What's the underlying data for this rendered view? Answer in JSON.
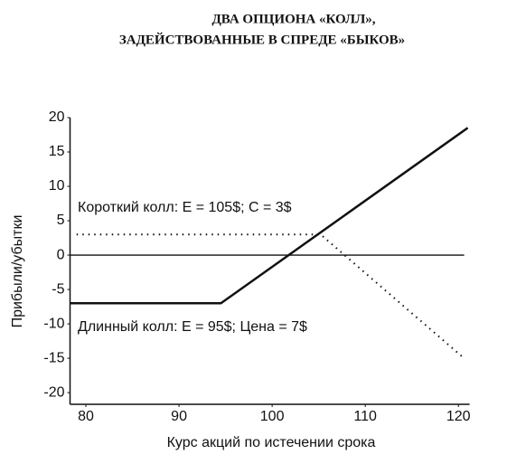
{
  "chart_data": {
    "type": "line",
    "title": [
      "ДВА ОПЦИОНА «КОЛЛ»,",
      "ЗАДЕЙСТВОВАННЫЕ В СПРЕДЕ «БЫКОВ»"
    ],
    "x_label": "Курс акций по истечении срока",
    "y_label": "Прибыли/убытки",
    "annotations": [
      "Короткий колл: E = 105$; C = 3$",
      "Длинный колл: E = 95$;   Цена = 7$"
    ],
    "series": [
      {
        "color": "#111111",
        "style": "solid",
        "x": [
          78.3,
          94.5,
          121
        ],
        "values": [
          -7,
          -7,
          18.5
        ]
      },
      {
        "color": "#111111",
        "style": "dotted",
        "x": [
          79,
          105.2,
          120.6
        ],
        "values": [
          3,
          3,
          -15
        ]
      }
    ],
    "xlim": [
      78.3,
      121.2
    ],
    "ylim": [
      -21.7,
      20
    ],
    "xticks": [
      80,
      90,
      100,
      110,
      120
    ],
    "yticks": [
      -20,
      -15,
      -10,
      -5,
      0,
      5,
      10,
      15,
      20
    ],
    "zero_line": true
  }
}
